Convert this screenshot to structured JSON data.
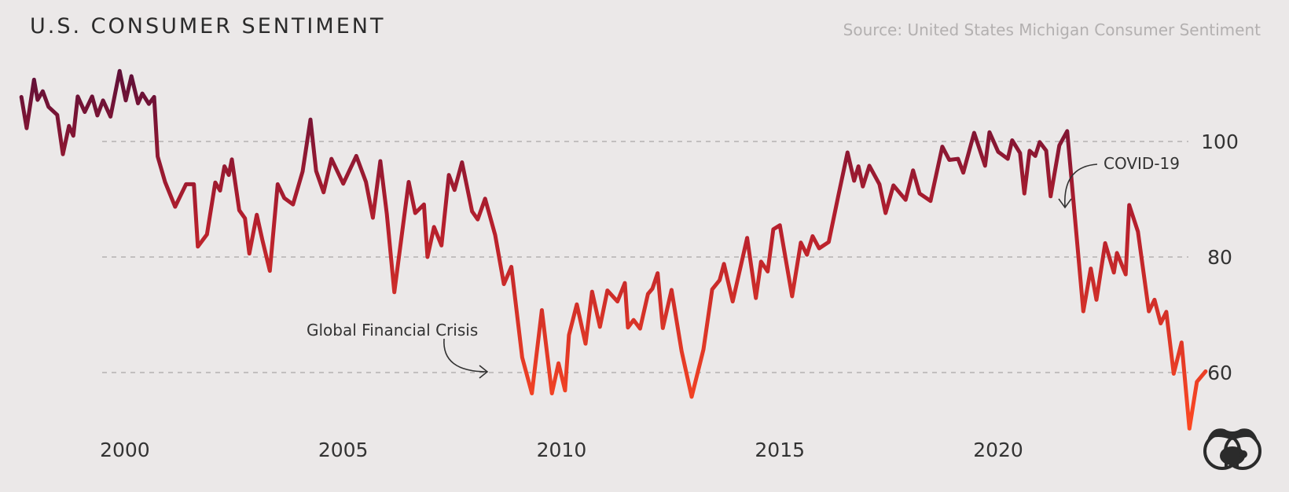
{
  "header": {
    "title": "U.S. CONSUMER SENTIMENT",
    "source": "Source: United States Michigan Consumer Sentiment"
  },
  "colors": {
    "background": "#ebe8e8",
    "line_high": "#5e0f38",
    "line_mid": "#b51f2d",
    "line_low": "#ff4a22",
    "grid": "#a9a6a6",
    "text": "#333333"
  },
  "chart_data": {
    "type": "line",
    "title": "U.S. CONSUMER SENTIMENT",
    "xlabel": "",
    "ylabel": "",
    "xlim": [
      1997.5,
      2023.6
    ],
    "ylim": [
      50,
      113
    ],
    "grid": true,
    "x_ticks": [
      2000,
      2005,
      2010,
      2015,
      2020
    ],
    "x_tick_labels": [
      "2000",
      "2005",
      "2010",
      "2015",
      "2020"
    ],
    "y_ticks": [
      60,
      80,
      100
    ],
    "y_tick_labels": [
      "60",
      "80",
      "100"
    ],
    "series": [
      {
        "name": "Michigan Consumer Sentiment",
        "points": [
          [
            1997.63,
            107.7
          ],
          [
            1997.75,
            102.3
          ],
          [
            1997.92,
            110.7
          ],
          [
            1998.0,
            107.2
          ],
          [
            1998.12,
            108.7
          ],
          [
            1998.25,
            106.0
          ],
          [
            1998.45,
            104.6
          ],
          [
            1998.58,
            97.8
          ],
          [
            1998.72,
            102.7
          ],
          [
            1998.82,
            101.0
          ],
          [
            1998.92,
            107.8
          ],
          [
            1999.08,
            105.1
          ],
          [
            1999.25,
            107.8
          ],
          [
            1999.37,
            104.5
          ],
          [
            1999.5,
            107.1
          ],
          [
            1999.67,
            104.3
          ],
          [
            1999.88,
            112.2
          ],
          [
            2000.02,
            107.1
          ],
          [
            2000.15,
            111.3
          ],
          [
            2000.3,
            106.6
          ],
          [
            2000.4,
            108.3
          ],
          [
            2000.55,
            106.5
          ],
          [
            2000.67,
            107.7
          ],
          [
            2000.75,
            97.4
          ],
          [
            2000.92,
            93.0
          ],
          [
            2001.15,
            88.7
          ],
          [
            2001.4,
            92.6
          ],
          [
            2001.58,
            92.6
          ],
          [
            2001.67,
            81.8
          ],
          [
            2001.88,
            83.9
          ],
          [
            2002.07,
            92.9
          ],
          [
            2002.18,
            91.5
          ],
          [
            2002.28,
            95.7
          ],
          [
            2002.38,
            94.2
          ],
          [
            2002.45,
            96.9
          ],
          [
            2002.62,
            88.1
          ],
          [
            2002.75,
            86.7
          ],
          [
            2002.85,
            80.6
          ],
          [
            2003.02,
            87.3
          ],
          [
            2003.15,
            82.9
          ],
          [
            2003.32,
            77.6
          ],
          [
            2003.5,
            92.6
          ],
          [
            2003.65,
            90.2
          ],
          [
            2003.85,
            89.1
          ],
          [
            2004.07,
            94.8
          ],
          [
            2004.25,
            103.8
          ],
          [
            2004.38,
            94.9
          ],
          [
            2004.55,
            91.2
          ],
          [
            2004.73,
            97.0
          ],
          [
            2005.0,
            92.7
          ],
          [
            2005.3,
            97.5
          ],
          [
            2005.52,
            93.0
          ],
          [
            2005.68,
            86.8
          ],
          [
            2005.85,
            96.6
          ],
          [
            2006.0,
            87.4
          ],
          [
            2006.17,
            73.9
          ],
          [
            2006.5,
            93.0
          ],
          [
            2006.65,
            87.6
          ],
          [
            2006.85,
            89.1
          ],
          [
            2006.93,
            80.0
          ],
          [
            2007.08,
            85.2
          ],
          [
            2007.25,
            82.0
          ],
          [
            2007.42,
            94.2
          ],
          [
            2007.55,
            91.6
          ],
          [
            2007.72,
            96.4
          ],
          [
            2007.95,
            87.9
          ],
          [
            2008.08,
            86.5
          ],
          [
            2008.25,
            90.1
          ],
          [
            2008.48,
            83.8
          ],
          [
            2008.68,
            75.3
          ],
          [
            2008.85,
            78.3
          ],
          [
            2009.1,
            62.6
          ],
          [
            2009.32,
            56.4
          ],
          [
            2009.55,
            70.8
          ],
          [
            2009.78,
            56.4
          ],
          [
            2009.93,
            61.6
          ],
          [
            2010.08,
            56.9
          ],
          [
            2010.17,
            66.5
          ],
          [
            2010.35,
            71.8
          ],
          [
            2010.55,
            65.0
          ],
          [
            2010.7,
            74.0
          ],
          [
            2010.88,
            67.9
          ],
          [
            2011.05,
            74.2
          ],
          [
            2011.28,
            72.3
          ],
          [
            2011.45,
            75.5
          ],
          [
            2011.52,
            67.8
          ],
          [
            2011.65,
            69.1
          ],
          [
            2011.8,
            67.6
          ],
          [
            2011.98,
            73.6
          ],
          [
            2012.08,
            74.5
          ],
          [
            2012.2,
            77.2
          ],
          [
            2012.32,
            67.7
          ],
          [
            2012.52,
            74.3
          ],
          [
            2012.75,
            63.7
          ],
          [
            2012.98,
            55.8
          ],
          [
            2013.25,
            64.0
          ],
          [
            2013.45,
            74.4
          ],
          [
            2013.62,
            76.0
          ],
          [
            2013.72,
            78.8
          ],
          [
            2013.92,
            72.3
          ],
          [
            2014.05,
            76.6
          ],
          [
            2014.25,
            83.3
          ],
          [
            2014.45,
            72.9
          ],
          [
            2014.57,
            79.2
          ],
          [
            2014.72,
            77.5
          ],
          [
            2014.85,
            84.8
          ],
          [
            2015.0,
            85.5
          ],
          [
            2015.28,
            73.2
          ],
          [
            2015.48,
            82.5
          ],
          [
            2015.62,
            80.4
          ],
          [
            2015.75,
            83.6
          ],
          [
            2015.9,
            81.5
          ],
          [
            2016.12,
            82.6
          ],
          [
            2016.35,
            91.0
          ],
          [
            2016.55,
            98.1
          ],
          [
            2016.7,
            93.2
          ],
          [
            2016.8,
            95.7
          ],
          [
            2016.9,
            92.2
          ],
          [
            2017.05,
            95.8
          ],
          [
            2017.28,
            92.6
          ],
          [
            2017.42,
            87.6
          ],
          [
            2017.6,
            92.4
          ],
          [
            2017.88,
            89.9
          ],
          [
            2018.05,
            95.0
          ],
          [
            2018.2,
            91.0
          ],
          [
            2018.45,
            89.7
          ],
          [
            2018.72,
            99.1
          ],
          [
            2018.88,
            96.8
          ],
          [
            2019.08,
            97.0
          ],
          [
            2019.2,
            94.6
          ],
          [
            2019.45,
            101.5
          ],
          [
            2019.7,
            95.8
          ],
          [
            2019.8,
            101.6
          ],
          [
            2020.0,
            98.2
          ],
          [
            2020.22,
            97.0
          ],
          [
            2020.32,
            100.2
          ],
          [
            2020.5,
            98.0
          ],
          [
            2020.6,
            91.0
          ],
          [
            2020.72,
            98.4
          ],
          [
            2020.85,
            97.5
          ],
          [
            2020.95,
            99.9
          ],
          [
            2021.1,
            98.4
          ],
          [
            2021.2,
            90.5
          ],
          [
            2021.4,
            99.3
          ],
          [
            2021.58,
            101.8
          ],
          [
            2021.95,
            70.6
          ],
          [
            2022.12,
            78.0
          ],
          [
            2022.25,
            72.6
          ],
          [
            2022.45,
            82.4
          ],
          [
            2022.65,
            77.3
          ],
          [
            2022.72,
            80.7
          ],
          [
            2022.92,
            77.0
          ],
          [
            2023.0,
            89.0
          ],
          [
            2023.2,
            84.4
          ],
          [
            2023.45,
            70.6
          ],
          [
            2023.58,
            72.6
          ],
          [
            2023.72,
            68.5
          ],
          [
            2023.85,
            70.5
          ],
          [
            2024.02,
            59.8
          ],
          [
            2024.2,
            65.2
          ],
          [
            2024.38,
            50.3
          ],
          [
            2024.55,
            58.4
          ],
          [
            2024.75,
            60.2
          ]
        ]
      }
    ],
    "annotations": [
      {
        "label": "Global Financial Crisis",
        "x": 2008.9,
        "y": 60.3
      },
      {
        "label": "COVID-19",
        "x": 2021.55,
        "y": 91.0
      }
    ]
  }
}
